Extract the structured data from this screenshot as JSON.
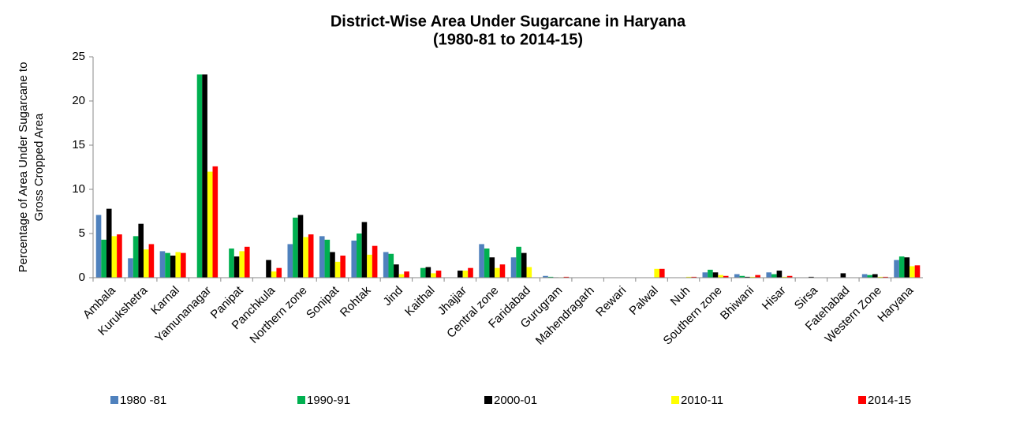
{
  "chart_data": {
    "type": "bar",
    "title": "District-Wise Area Under Sugarcane in Haryana",
    "subtitle": "(1980-81 to 2014-15)",
    "ylabel": [
      "Percentage of Area Under Sugarcane to",
      "Gross Cropped Area"
    ],
    "categories": [
      "Ambala",
      "Kurukshetra",
      "Karnal",
      "Yamunanagar",
      "Panipat",
      "Panchkula",
      "Northern zone",
      "Sonipat",
      "Rohtak",
      "Jind",
      "Kaithal",
      "Jhajjar",
      "Central zone",
      "Faridabad",
      "Gurugram",
      "Mahendragarh",
      "Rewari",
      "Palwal",
      "Nuh",
      "Southern zone",
      "Bhiwani",
      "Hisar",
      "Sirsa",
      "Fatehabad",
      "Western Zone",
      "Haryana"
    ],
    "series": [
      {
        "name": "1980 -81",
        "color": "#4f81bd",
        "values": [
          7.1,
          2.2,
          3.0,
          0,
          0,
          0,
          3.8,
          4.7,
          4.2,
          2.9,
          0,
          0,
          3.8,
          2.3,
          0.2,
          0,
          0,
          0,
          0,
          0.6,
          0.4,
          0.6,
          0,
          0,
          0.4,
          2.0
        ]
      },
      {
        "name": "1990-91",
        "color": "#00b050",
        "values": [
          4.3,
          4.7,
          2.8,
          23.0,
          3.3,
          0,
          6.8,
          4.3,
          5.0,
          2.7,
          1.1,
          0,
          3.3,
          3.5,
          0.1,
          0,
          0,
          0,
          0,
          0.9,
          0.2,
          0.4,
          0,
          0,
          0.3,
          2.4
        ]
      },
      {
        "name": "2000-01",
        "color": "#000000",
        "values": [
          7.8,
          6.1,
          2.5,
          23.0,
          2.4,
          2.0,
          7.1,
          2.9,
          6.3,
          1.5,
          1.2,
          0.8,
          2.3,
          2.8,
          0.05,
          0,
          0,
          0,
          0,
          0.6,
          0.1,
          0.8,
          0.1,
          0.5,
          0.4,
          2.3
        ]
      },
      {
        "name": "2010-11",
        "color": "#ffff00",
        "values": [
          4.7,
          3.2,
          2.9,
          12.0,
          3.0,
          0.7,
          4.6,
          1.8,
          2.6,
          0.4,
          0.5,
          0.8,
          1.1,
          1.2,
          0.05,
          0,
          0,
          1.0,
          0.1,
          0.3,
          0.1,
          0.1,
          0,
          0,
          0.1,
          1.3
        ]
      },
      {
        "name": "2014-15",
        "color": "#ff0000",
        "values": [
          4.9,
          3.8,
          2.8,
          12.6,
          3.5,
          1.1,
          4.9,
          2.5,
          3.6,
          0.7,
          0.8,
          1.1,
          1.5,
          0,
          0.1,
          0,
          0,
          1.0,
          0.1,
          0.2,
          0.3,
          0.2,
          0,
          0,
          0.1,
          1.4
        ]
      }
    ],
    "ylim": [
      0,
      25
    ],
    "yticks": [
      0,
      5,
      10,
      15,
      20,
      25
    ],
    "grid": false,
    "legend": "bottom"
  }
}
